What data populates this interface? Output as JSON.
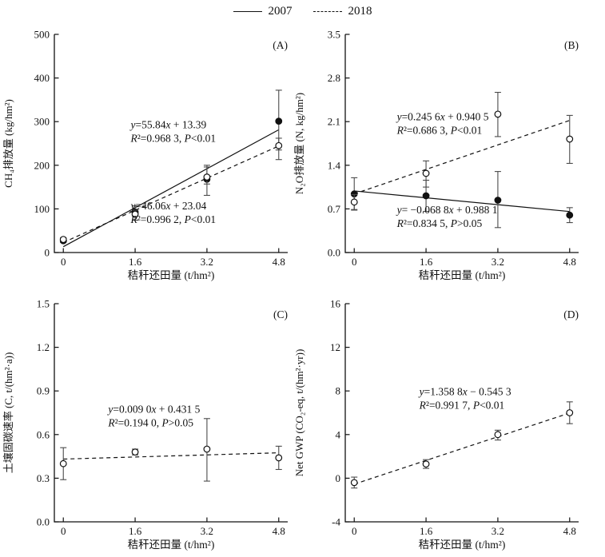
{
  "legend": {
    "items": [
      {
        "label": "2007",
        "line": "solid"
      },
      {
        "label": "2018",
        "line": "dashed"
      }
    ]
  },
  "colors": {
    "axis": "#111111",
    "marker": "#111111",
    "error_bar": "#4a4a4a",
    "background": "#ffffff"
  },
  "chart_data": [
    {
      "type": "scatter",
      "panel_label": "(A)",
      "ylabel": "CH₄排放量 (kg/hm²)",
      "xlabel": "秸秆还田量 (t/hm²)",
      "ylim": [
        0,
        500
      ],
      "yticks": [
        0,
        100,
        200,
        300,
        400,
        500
      ],
      "ytick_labels": [
        "0",
        "100",
        "200",
        "300",
        "400",
        "500"
      ],
      "xlim": [
        -0.2,
        5.0
      ],
      "xticks": [
        0,
        1.6,
        3.2,
        4.8
      ],
      "xtick_labels": [
        "0",
        "1.6",
        "3.2",
        "4.8"
      ],
      "series": [
        {
          "name": "2007",
          "marker": "filled",
          "line": "solid",
          "fit": {
            "slope": 55.84,
            "intercept": 13.39,
            "x0": 0,
            "x1": 4.8
          },
          "points": [
            {
              "x": 0,
              "y": 27,
              "lo": 23,
              "hi": 31
            },
            {
              "x": 1.6,
              "y": 93,
              "lo": 84,
              "hi": 107
            },
            {
              "x": 3.2,
              "y": 168,
              "lo": 131,
              "hi": 196
            },
            {
              "x": 4.8,
              "y": 301,
              "lo": 235,
              "hi": 372
            }
          ]
        },
        {
          "name": "2018",
          "marker": "open",
          "line": "dashed",
          "fit": {
            "slope": 46.06,
            "intercept": 23.04,
            "x0": 0,
            "x1": 4.8
          },
          "points": [
            {
              "x": 0,
              "y": 30,
              "lo": 26,
              "hi": 34
            },
            {
              "x": 1.6,
              "y": 88,
              "lo": 74,
              "hi": 97
            },
            {
              "x": 3.2,
              "y": 173,
              "lo": 157,
              "hi": 200
            },
            {
              "x": 4.8,
              "y": 245,
              "lo": 213,
              "hi": 262
            }
          ]
        }
      ],
      "annotations": [
        {
          "x": 1.5,
          "y": 285,
          "lines": [
            "y=55.84x + 13.39",
            "R²=0.968 3, P<0.01"
          ]
        },
        {
          "x": 1.5,
          "y": 99,
          "lines": [
            "y=46.06x + 23.04",
            "R²=0.996 2, P<0.01"
          ]
        }
      ]
    },
    {
      "type": "scatter",
      "panel_label": "(B)",
      "ylabel": "N₂O排放量 (N, kg/hm²)",
      "xlabel": "秸秆还田量 (t/hm²)",
      "ylim": [
        0,
        3.5
      ],
      "yticks": [
        0,
        0.7,
        1.4,
        2.1,
        2.8,
        3.5
      ],
      "ytick_labels": [
        "0.0",
        "0.7",
        "1.4",
        "2.1",
        "2.8",
        "3.5"
      ],
      "xlim": [
        -0.2,
        5.0
      ],
      "xticks": [
        0,
        1.6,
        3.2,
        4.8
      ],
      "xtick_labels": [
        "0",
        "1.6",
        "3.2",
        "4.8"
      ],
      "series": [
        {
          "name": "2007",
          "marker": "filled",
          "line": "solid",
          "fit": {
            "slope": -0.0688,
            "intercept": 0.9881,
            "x0": 0,
            "x1": 4.8
          },
          "points": [
            {
              "x": 0,
              "y": 0.94,
              "lo": 0.68,
              "hi": 1.2
            },
            {
              "x": 1.6,
              "y": 0.91,
              "lo": 0.66,
              "hi": 1.16
            },
            {
              "x": 3.2,
              "y": 0.84,
              "lo": 0.4,
              "hi": 1.3
            },
            {
              "x": 4.8,
              "y": 0.6,
              "lo": 0.48,
              "hi": 0.72
            }
          ]
        },
        {
          "name": "2018",
          "marker": "open",
          "line": "dashed",
          "fit": {
            "slope": 0.2456,
            "intercept": 0.9405,
            "x0": 0,
            "x1": 4.8
          },
          "points": [
            {
              "x": 0,
              "y": 0.81,
              "lo": 0.69,
              "hi": 0.93
            },
            {
              "x": 1.6,
              "y": 1.27,
              "lo": 1.05,
              "hi": 1.47
            },
            {
              "x": 3.2,
              "y": 2.22,
              "lo": 1.86,
              "hi": 2.57
            },
            {
              "x": 4.8,
              "y": 1.82,
              "lo": 1.43,
              "hi": 2.2
            }
          ]
        }
      ],
      "annotations": [
        {
          "x": 0.95,
          "y": 2.12,
          "lines": [
            "y=0.245 6x + 0.940 5",
            "R²=0.686 3, P<0.01"
          ]
        },
        {
          "x": 0.95,
          "y": 0.63,
          "lines": [
            "y= −0.068 8x + 0.988 1",
            "R²=0.834 5, P>0.05"
          ]
        }
      ]
    },
    {
      "type": "scatter",
      "panel_label": "(C)",
      "ylabel": "土壤固碳速率 (C, t/(hm²·a))",
      "xlabel": "秸秆还田量 (t/hm²)",
      "ylim": [
        0,
        1.5
      ],
      "yticks": [
        0,
        0.3,
        0.6,
        0.9,
        1.2,
        1.5
      ],
      "ytick_labels": [
        "0.0",
        "0.3",
        "0.6",
        "0.9",
        "1.2",
        "1.5"
      ],
      "xlim": [
        -0.2,
        5.0
      ],
      "xticks": [
        0,
        1.6,
        3.2,
        4.8
      ],
      "xtick_labels": [
        "0",
        "1.6",
        "3.2",
        "4.8"
      ],
      "series": [
        {
          "name": "2018",
          "marker": "open",
          "line": "dashed",
          "fit": {
            "slope": 0.009,
            "intercept": 0.4315,
            "x0": 0,
            "x1": 4.8
          },
          "points": [
            {
              "x": 0,
              "y": 0.4,
              "lo": 0.29,
              "hi": 0.51
            },
            {
              "x": 1.6,
              "y": 0.48,
              "lo": 0.46,
              "hi": 0.5
            },
            {
              "x": 3.2,
              "y": 0.5,
              "lo": 0.28,
              "hi": 0.71
            },
            {
              "x": 4.8,
              "y": 0.44,
              "lo": 0.36,
              "hi": 0.52
            }
          ]
        }
      ],
      "annotations": [
        {
          "x": 1.0,
          "y": 0.75,
          "lines": [
            "y=0.009 0x + 0.431 5",
            "R²=0.194 0, P>0.05"
          ]
        }
      ]
    },
    {
      "type": "scatter",
      "panel_label": "(D)",
      "ylabel": "Net GWP (CO₂-eq, t/(hm²·yr))",
      "xlabel": "秸秆还田量 (t/hm²)",
      "ylim": [
        -4,
        16
      ],
      "yticks": [
        -4,
        0,
        4,
        8,
        12,
        16
      ],
      "ytick_labels": [
        "-4",
        "0",
        "4",
        "8",
        "12",
        "16"
      ],
      "xlim": [
        -0.2,
        5.0
      ],
      "xticks": [
        0,
        1.6,
        3.2,
        4.8
      ],
      "xtick_labels": [
        "0",
        "1.6",
        "3.2",
        "4.8"
      ],
      "series": [
        {
          "name": "2018",
          "marker": "open",
          "line": "dashed",
          "fit": {
            "slope": 1.3588,
            "intercept": -0.5453,
            "x0": 0,
            "x1": 4.8
          },
          "points": [
            {
              "x": 0,
              "y": -0.4,
              "lo": -0.9,
              "hi": 0.1
            },
            {
              "x": 1.6,
              "y": 1.3,
              "lo": 0.9,
              "hi": 1.7
            },
            {
              "x": 3.2,
              "y": 4.0,
              "lo": 3.5,
              "hi": 4.4
            },
            {
              "x": 4.8,
              "y": 6.0,
              "lo": 5.0,
              "hi": 7.0
            }
          ]
        }
      ],
      "annotations": [
        {
          "x": 1.45,
          "y": 7.6,
          "lines": [
            "y=1.358 8x − 0.545 3",
            "R²=0.991 7, P<0.01"
          ]
        }
      ]
    }
  ]
}
